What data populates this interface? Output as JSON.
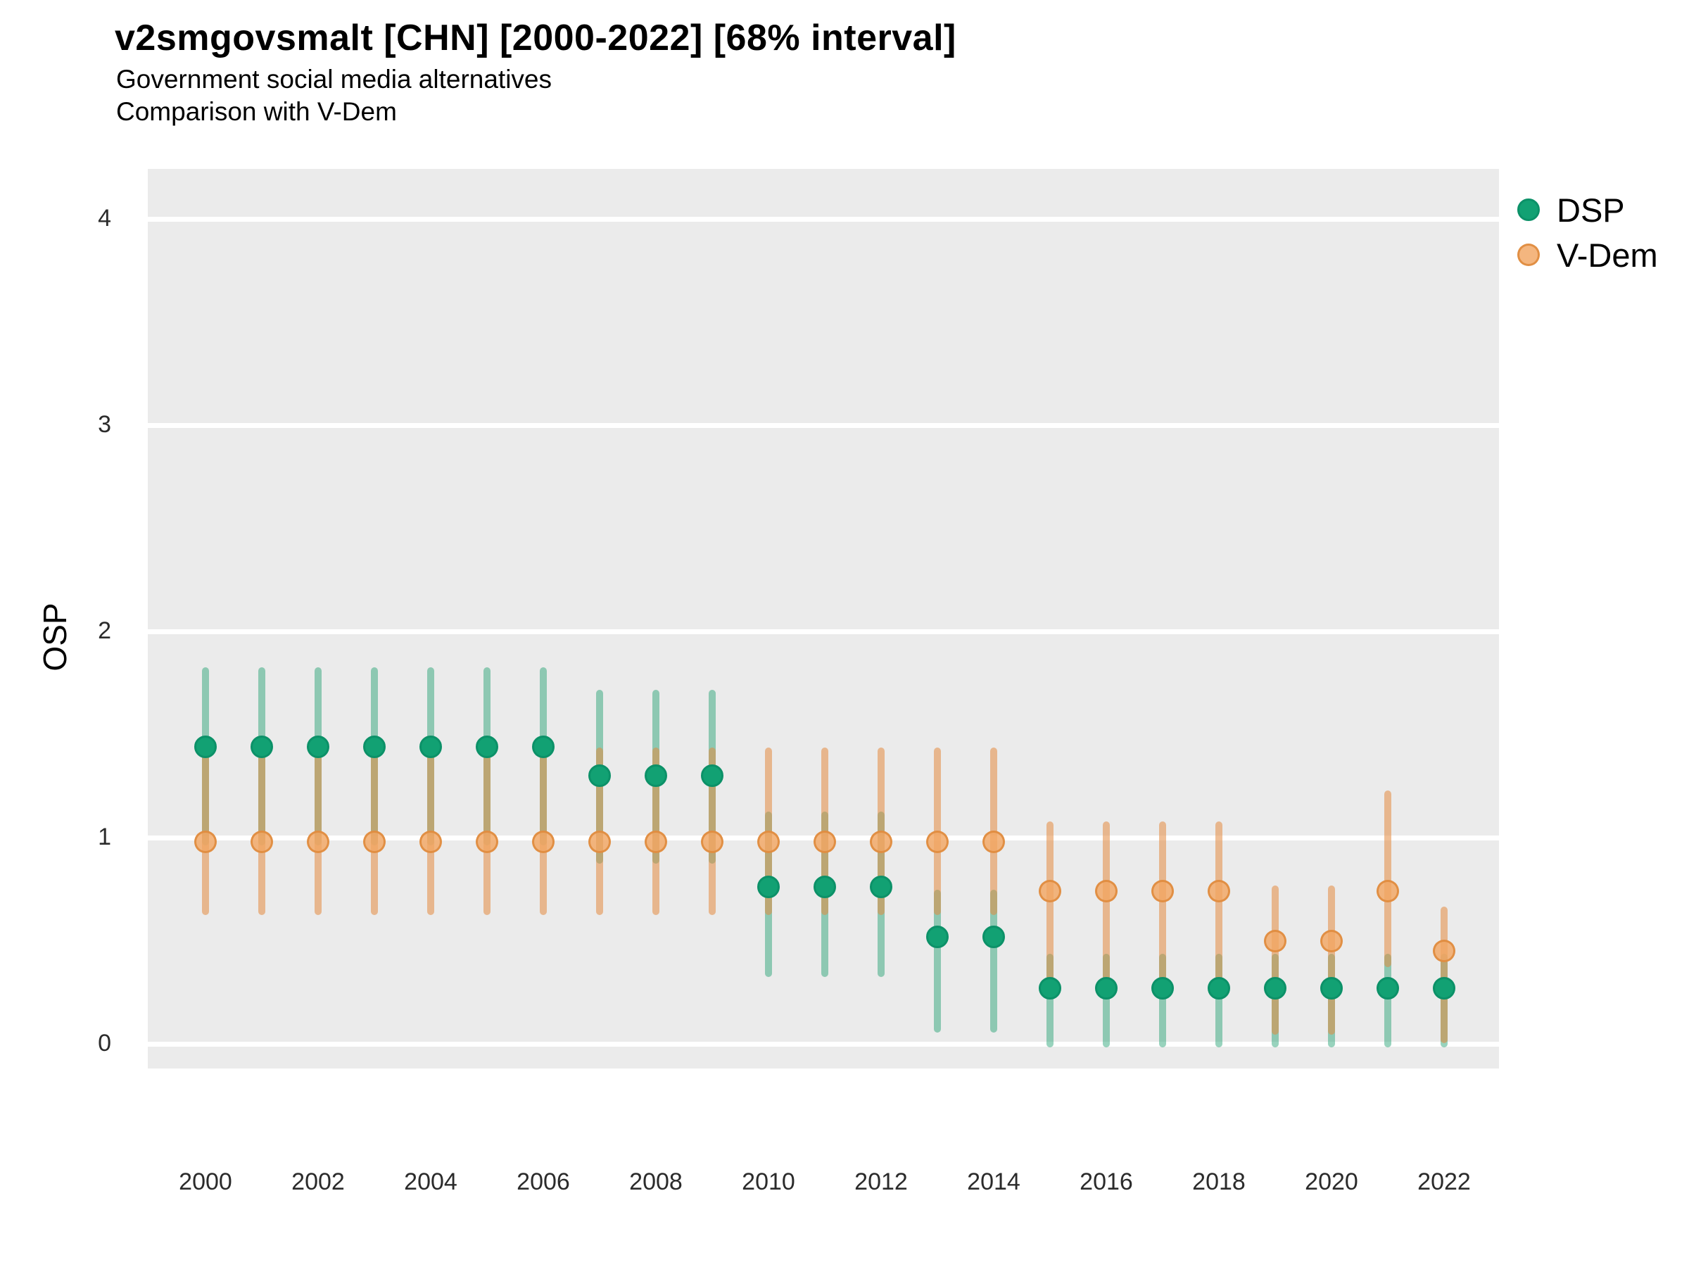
{
  "header": {
    "title": "v2smgovsmalt [CHN] [2000-2022] [68% interval]",
    "subtitle_line1": "Government social media alternatives",
    "subtitle_line2": "Comparison with V-Dem"
  },
  "chart_data": {
    "type": "pointrange",
    "title": "v2smgovsmalt [CHN] [2000-2022] [68% interval]",
    "subtitle": [
      "Government social media alternatives",
      "Comparison with V-Dem"
    ],
    "variable": "v2smgovsmalt",
    "country": "CHN",
    "interval_label": "68% interval",
    "ylabel": "OSP",
    "xlabel": "",
    "ylim": [
      -0.25,
      4.25
    ],
    "xlim": [
      1999,
      2023
    ],
    "grid": "major-horizontal",
    "legend_position": "right",
    "panel_bg": "#EBEBEB",
    "grid_color": "#FFFFFF",
    "yticks": [
      {
        "label": "0",
        "value": 0
      },
      {
        "label": "1",
        "value": 1
      },
      {
        "label": "2",
        "value": 2
      },
      {
        "label": "3",
        "value": 3
      },
      {
        "label": "4",
        "value": 4
      }
    ],
    "xticks": [
      {
        "label": "2000",
        "year": 2000
      },
      {
        "label": "2002",
        "year": 2002
      },
      {
        "label": "2004",
        "year": 2004
      },
      {
        "label": "2006",
        "year": 2006
      },
      {
        "label": "2008",
        "year": 2008
      },
      {
        "label": "2010",
        "year": 2010
      },
      {
        "label": "2012",
        "year": 2012
      },
      {
        "label": "2014",
        "year": 2014
      },
      {
        "label": "2016",
        "year": 2016
      },
      {
        "label": "2018",
        "year": 2018
      },
      {
        "label": "2020",
        "year": 2020
      },
      {
        "label": "2022",
        "year": 2022
      }
    ],
    "series": [
      {
        "name": "DSP",
        "point_fill": "#12A173",
        "point_stroke": "#0C9168",
        "line_color": "rgba(27,158,109,0.45)",
        "points": [
          {
            "x": 2000,
            "y": 1.44,
            "lo": 0.98,
            "hi": 1.81
          },
          {
            "x": 2001,
            "y": 1.44,
            "lo": 0.98,
            "hi": 1.81
          },
          {
            "x": 2002,
            "y": 1.44,
            "lo": 0.98,
            "hi": 1.81
          },
          {
            "x": 2003,
            "y": 1.44,
            "lo": 0.98,
            "hi": 1.81
          },
          {
            "x": 2004,
            "y": 1.44,
            "lo": 0.98,
            "hi": 1.81
          },
          {
            "x": 2005,
            "y": 1.44,
            "lo": 0.98,
            "hi": 1.81
          },
          {
            "x": 2006,
            "y": 1.44,
            "lo": 0.98,
            "hi": 1.81
          },
          {
            "x": 2007,
            "y": 1.3,
            "lo": 0.89,
            "hi": 1.7
          },
          {
            "x": 2008,
            "y": 1.3,
            "lo": 0.89,
            "hi": 1.7
          },
          {
            "x": 2009,
            "y": 1.3,
            "lo": 0.89,
            "hi": 1.7
          },
          {
            "x": 2010,
            "y": 0.76,
            "lo": 0.34,
            "hi": 1.11
          },
          {
            "x": 2011,
            "y": 0.76,
            "lo": 0.34,
            "hi": 1.11
          },
          {
            "x": 2012,
            "y": 0.76,
            "lo": 0.34,
            "hi": 1.11
          },
          {
            "x": 2013,
            "y": 0.52,
            "lo": 0.07,
            "hi": 0.73
          },
          {
            "x": 2014,
            "y": 0.52,
            "lo": 0.07,
            "hi": 0.73
          },
          {
            "x": 2015,
            "y": 0.27,
            "lo": 0.0,
            "hi": 0.42
          },
          {
            "x": 2016,
            "y": 0.27,
            "lo": 0.0,
            "hi": 0.42
          },
          {
            "x": 2017,
            "y": 0.27,
            "lo": 0.0,
            "hi": 0.42
          },
          {
            "x": 2018,
            "y": 0.27,
            "lo": 0.0,
            "hi": 0.42
          },
          {
            "x": 2019,
            "y": 0.27,
            "lo": 0.0,
            "hi": 0.42
          },
          {
            "x": 2020,
            "y": 0.27,
            "lo": 0.0,
            "hi": 0.42
          },
          {
            "x": 2021,
            "y": 0.27,
            "lo": 0.0,
            "hi": 0.42
          },
          {
            "x": 2022,
            "y": 0.27,
            "lo": 0.0,
            "hi": 0.42
          }
        ]
      },
      {
        "name": "V-Dem",
        "point_fill": "rgba(241,166,99,0.82)",
        "point_stroke": "rgba(223,140,62,0.9)",
        "line_color": "rgba(228,138,64,0.55)",
        "points": [
          {
            "x": 2000,
            "y": 0.98,
            "lo": 0.64,
            "hi": 1.42
          },
          {
            "x": 2001,
            "y": 0.98,
            "lo": 0.64,
            "hi": 1.42
          },
          {
            "x": 2002,
            "y": 0.98,
            "lo": 0.64,
            "hi": 1.42
          },
          {
            "x": 2003,
            "y": 0.98,
            "lo": 0.64,
            "hi": 1.42
          },
          {
            "x": 2004,
            "y": 0.98,
            "lo": 0.64,
            "hi": 1.42
          },
          {
            "x": 2005,
            "y": 0.98,
            "lo": 0.64,
            "hi": 1.42
          },
          {
            "x": 2006,
            "y": 0.98,
            "lo": 0.64,
            "hi": 1.42
          },
          {
            "x": 2007,
            "y": 0.98,
            "lo": 0.64,
            "hi": 1.42
          },
          {
            "x": 2008,
            "y": 0.98,
            "lo": 0.64,
            "hi": 1.42
          },
          {
            "x": 2009,
            "y": 0.98,
            "lo": 0.64,
            "hi": 1.42
          },
          {
            "x": 2010,
            "y": 0.98,
            "lo": 0.64,
            "hi": 1.42
          },
          {
            "x": 2011,
            "y": 0.98,
            "lo": 0.64,
            "hi": 1.42
          },
          {
            "x": 2012,
            "y": 0.98,
            "lo": 0.64,
            "hi": 1.42
          },
          {
            "x": 2013,
            "y": 0.98,
            "lo": 0.64,
            "hi": 1.42
          },
          {
            "x": 2014,
            "y": 0.98,
            "lo": 0.64,
            "hi": 1.42
          },
          {
            "x": 2015,
            "y": 0.74,
            "lo": 0.3,
            "hi": 1.06
          },
          {
            "x": 2016,
            "y": 0.74,
            "lo": 0.3,
            "hi": 1.06
          },
          {
            "x": 2017,
            "y": 0.74,
            "lo": 0.3,
            "hi": 1.06
          },
          {
            "x": 2018,
            "y": 0.74,
            "lo": 0.3,
            "hi": 1.06
          },
          {
            "x": 2019,
            "y": 0.5,
            "lo": 0.06,
            "hi": 0.75
          },
          {
            "x": 2020,
            "y": 0.5,
            "lo": 0.06,
            "hi": 0.75
          },
          {
            "x": 2021,
            "y": 0.74,
            "lo": 0.39,
            "hi": 1.21
          },
          {
            "x": 2022,
            "y": 0.45,
            "lo": 0.02,
            "hi": 0.65
          }
        ]
      }
    ]
  }
}
